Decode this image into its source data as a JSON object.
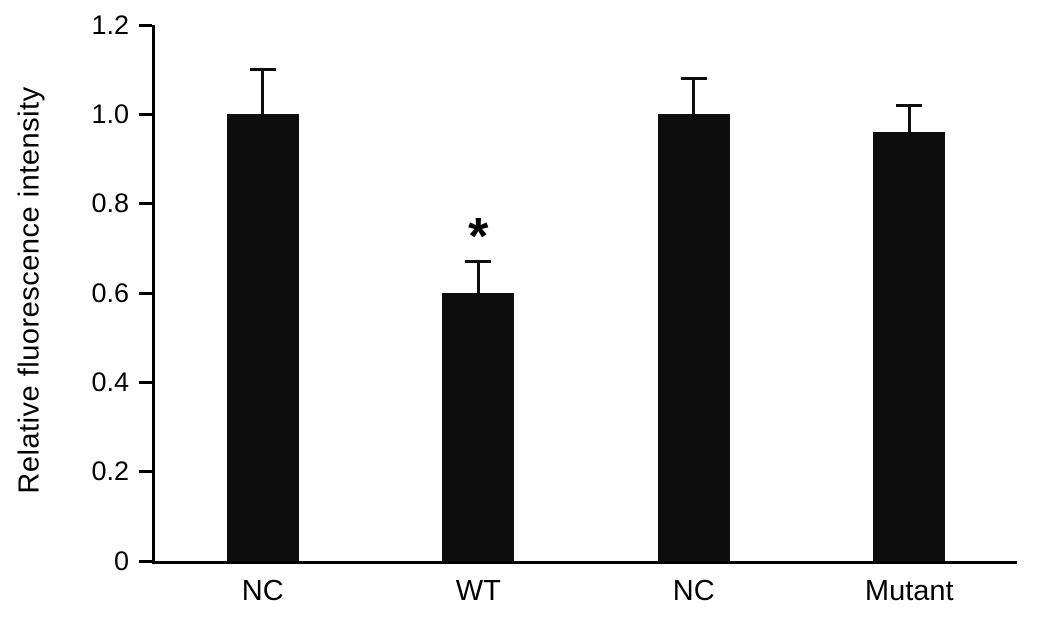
{
  "chart_data": {
    "type": "bar",
    "title": "",
    "xlabel": "",
    "ylabel": "Relative fluorescence intensity",
    "categories": [
      "NC",
      "WT",
      "NC",
      "Mutant"
    ],
    "values": [
      1.0,
      0.6,
      1.0,
      0.96
    ],
    "errors_upper": [
      0.1,
      0.07,
      0.08,
      0.06
    ],
    "annotations": [
      {
        "category_index": 1,
        "text": "*",
        "meaning": "significant difference"
      }
    ],
    "ylim": [
      0,
      1.2
    ],
    "yticks": [
      0,
      0.2,
      0.4,
      0.6,
      0.8,
      1.0,
      1.2
    ],
    "ytick_labels": [
      "0",
      "0.2",
      "0.4",
      "0.6",
      "0.8",
      "1.0",
      "1.2"
    ],
    "bar_color": "#0d0d0d",
    "axis_color": "#000000",
    "grid": false,
    "legend": false
  }
}
